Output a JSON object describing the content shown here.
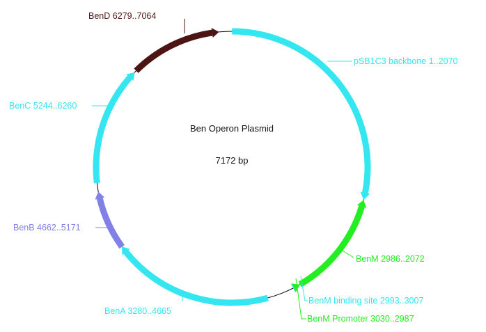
{
  "map": {
    "title": "Ben Operon Plasmid",
    "size_label": "7172 bp",
    "total_bp": 7172
  },
  "colors": {
    "backbone": "#33e6f0",
    "benM": "#22ee22",
    "benB": "#8080e6",
    "benD": "#4d1414",
    "line": "#000000"
  },
  "features": [
    {
      "id": "backbone",
      "label": "pSB1C3 backbone 1..2070",
      "start": 1,
      "end": 2070,
      "direction": "forward",
      "color_key": "backbone"
    },
    {
      "id": "benM",
      "label": "BenM 2986..2072",
      "start": 2072,
      "end": 2986,
      "direction": "reverse",
      "color_key": "benM"
    },
    {
      "id": "benM-binding-site",
      "label": "BenM binding site 2993..3007",
      "start": 2993,
      "end": 3007,
      "direction": "reverse",
      "color_key": "backbone"
    },
    {
      "id": "benM-promoter",
      "label": "BenM Promoter 3030..2987",
      "start": 2987,
      "end": 3030,
      "direction": "reverse",
      "color_key": "benM"
    },
    {
      "id": "benA",
      "label": "BenA 3280..4665",
      "start": 3280,
      "end": 4665,
      "direction": "forward",
      "color_key": "backbone"
    },
    {
      "id": "benB",
      "label": "BenB 4662..5171",
      "start": 4662,
      "end": 5171,
      "direction": "forward",
      "color_key": "benB"
    },
    {
      "id": "benC",
      "label": "BenC 5244..6260",
      "start": 5244,
      "end": 6260,
      "direction": "forward",
      "color_key": "backbone"
    },
    {
      "id": "benD",
      "label": "BenD 6279..7064",
      "start": 6279,
      "end": 7064,
      "direction": "forward",
      "color_key": "benD"
    }
  ]
}
